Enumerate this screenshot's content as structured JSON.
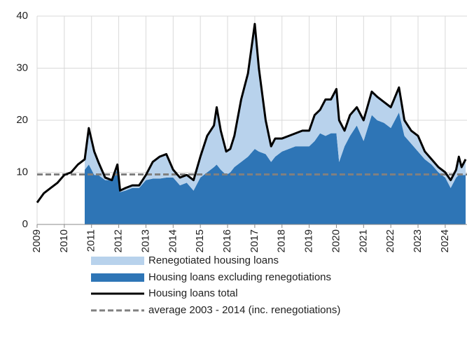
{
  "chart_data": {
    "type": "area",
    "x": [
      2009,
      2009.25,
      2009.5,
      2009.75,
      2010,
      2010.25,
      2010.5,
      2010.75,
      2010.9,
      2011.1,
      2011.25,
      2011.5,
      2011.75,
      2011.95,
      2012.05,
      2012.25,
      2012.5,
      2012.75,
      2013,
      2013.25,
      2013.5,
      2013.75,
      2014,
      2014.25,
      2014.5,
      2014.75,
      2015,
      2015.25,
      2015.5,
      2015.6,
      2015.75,
      2015.95,
      2016.1,
      2016.25,
      2016.5,
      2016.75,
      2017,
      2017.15,
      2017.4,
      2017.6,
      2017.75,
      2018,
      2018.25,
      2018.5,
      2018.75,
      2019,
      2019.2,
      2019.4,
      2019.6,
      2019.8,
      2020,
      2020.1,
      2020.3,
      2020.5,
      2020.75,
      2021,
      2021.3,
      2021.5,
      2021.75,
      2022,
      2022.3,
      2022.5,
      2022.75,
      2023,
      2023.25,
      2023.5,
      2023.75,
      2024,
      2024.2,
      2024.4,
      2024.5,
      2024.6,
      2024.75
    ],
    "series": [
      {
        "name": "Renegotiated housing loans",
        "kind": "area",
        "stack": 1,
        "color": "#b8d2ec",
        "values": [
          null,
          null,
          null,
          null,
          null,
          null,
          null,
          2,
          7,
          4.5,
          2.5,
          0.5,
          0,
          1,
          0.3,
          0.5,
          0.5,
          0.5,
          1,
          3.2,
          4.2,
          4.5,
          1.5,
          1.5,
          1.5,
          2,
          4,
          7,
          8,
          11,
          7.5,
          4.5,
          4.5,
          6,
          12,
          16,
          24,
          16,
          6.5,
          3,
          3.5,
          2.5,
          2.5,
          2.5,
          3,
          3,
          5,
          4.5,
          7,
          6.5,
          8.5,
          8,
          3,
          4,
          3.5,
          4,
          4.5,
          4.5,
          4,
          4,
          4.8,
          3,
          2.5,
          3,
          1.5,
          1,
          1,
          1,
          1.5,
          1.5,
          3.5,
          1.5,
          3
        ]
      },
      {
        "name": "Housing loans excluding renegotiations",
        "kind": "area",
        "stack": 0,
        "color": "#2e75b6",
        "values": [
          null,
          null,
          null,
          null,
          null,
          null,
          null,
          10.5,
          11.5,
          9.5,
          9.5,
          8.5,
          8.5,
          10.5,
          6.2,
          6.5,
          7,
          7,
          8.5,
          8.8,
          8.8,
          9,
          9,
          7.5,
          8,
          6.5,
          9,
          10,
          11,
          11.5,
          10.5,
          9.5,
          10,
          11,
          12,
          13,
          14.5,
          14,
          13.5,
          12,
          13,
          14,
          14.5,
          15,
          15,
          15,
          16,
          17.5,
          17,
          17.5,
          17.5,
          12,
          15,
          17,
          19,
          16,
          21,
          20,
          19.5,
          18.5,
          21.5,
          17,
          15.5,
          14,
          12.5,
          11.5,
          10,
          9,
          7,
          9,
          9.5,
          9.5,
          9.5
        ]
      },
      {
        "name": "Housing loans total",
        "kind": "line",
        "color": "#000000",
        "values": [
          4.2,
          6,
          7,
          8,
          9.5,
          10,
          11.5,
          12.5,
          18.5,
          14,
          12,
          9,
          8.5,
          11.5,
          6.5,
          7,
          7.5,
          7.5,
          9.5,
          12,
          13,
          13.5,
          10.5,
          9,
          9.5,
          8.5,
          13,
          17,
          19,
          22.5,
          18,
          14,
          14.5,
          17,
          24,
          29,
          38.5,
          30,
          20,
          15,
          16.5,
          16.5,
          17,
          17.5,
          18,
          18,
          21,
          22,
          24,
          24,
          26,
          20,
          18,
          21,
          22.5,
          20,
          25.5,
          24.5,
          23.5,
          22.5,
          26.3,
          20,
          18,
          17,
          14,
          12.5,
          11,
          10,
          8.5,
          10.5,
          13,
          11,
          12.5
        ]
      }
    ],
    "average": {
      "name": "average 2003 - 2014 (inc. renegotiations)",
      "value": 9.6,
      "color": "#808080"
    },
    "xlim": [
      2009,
      2024.8
    ],
    "xticks": [
      2009,
      2010,
      2011,
      2012,
      2013,
      2014,
      2015,
      2016,
      2017,
      2018,
      2019,
      2020,
      2021,
      2022,
      2023,
      2024
    ],
    "ylim": [
      0,
      40
    ],
    "yticks": [
      0,
      10,
      20,
      30,
      40
    ],
    "grid": true
  }
}
